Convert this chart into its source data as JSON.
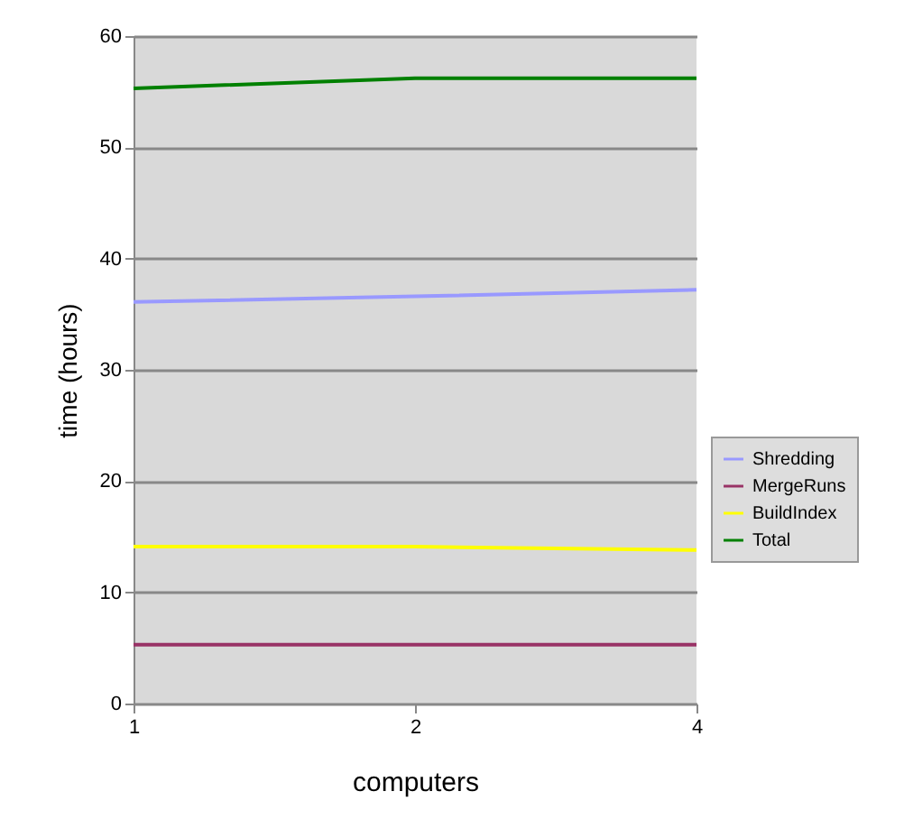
{
  "chart_data": {
    "type": "line",
    "xlabel": "computers",
    "ylabel": "time (hours)",
    "categories": [
      "1",
      "2",
      "4"
    ],
    "series": [
      {
        "name": "Shredding",
        "color": "#9999ff",
        "values": [
          36.1,
          36.6,
          37.2
        ]
      },
      {
        "name": "MergeRuns",
        "color": "#993366",
        "values": [
          5.3,
          5.3,
          5.3
        ]
      },
      {
        "name": "BuildIndex",
        "color": "#ffff00",
        "values": [
          14.1,
          14.1,
          13.8
        ]
      },
      {
        "name": "Total",
        "color": "#008000",
        "values": [
          55.3,
          56.2,
          56.2
        ]
      }
    ],
    "ylim": [
      0,
      60
    ],
    "yticks": [
      0,
      10,
      20,
      30,
      40,
      50,
      60
    ],
    "grid": "y",
    "legend": "right",
    "marker": "none",
    "line_style": "solid"
  }
}
